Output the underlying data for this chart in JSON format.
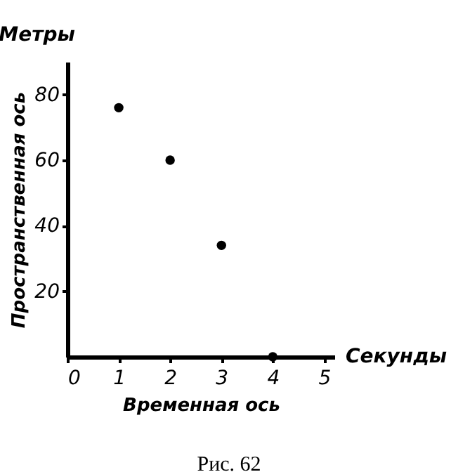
{
  "chart_data": {
    "type": "scatter",
    "title": "Метры",
    "xlabel": "Временная ось",
    "ylabel": "Пространственная ось",
    "annotations": [
      "Секунды",
      "Рис. 62"
    ],
    "x": [
      1,
      2,
      3,
      4
    ],
    "series": [
      {
        "color": "#000000",
        "values": [
          76,
          60,
          34,
          0
        ]
      }
    ],
    "xlim": [
      0,
      5.2
    ],
    "xticks": [
      0,
      1,
      2,
      3,
      4,
      5
    ],
    "ylim": [
      0,
      90
    ],
    "yticks": [
      20,
      40,
      60,
      80
    ],
    "grid": false,
    "marker": "circle"
  }
}
